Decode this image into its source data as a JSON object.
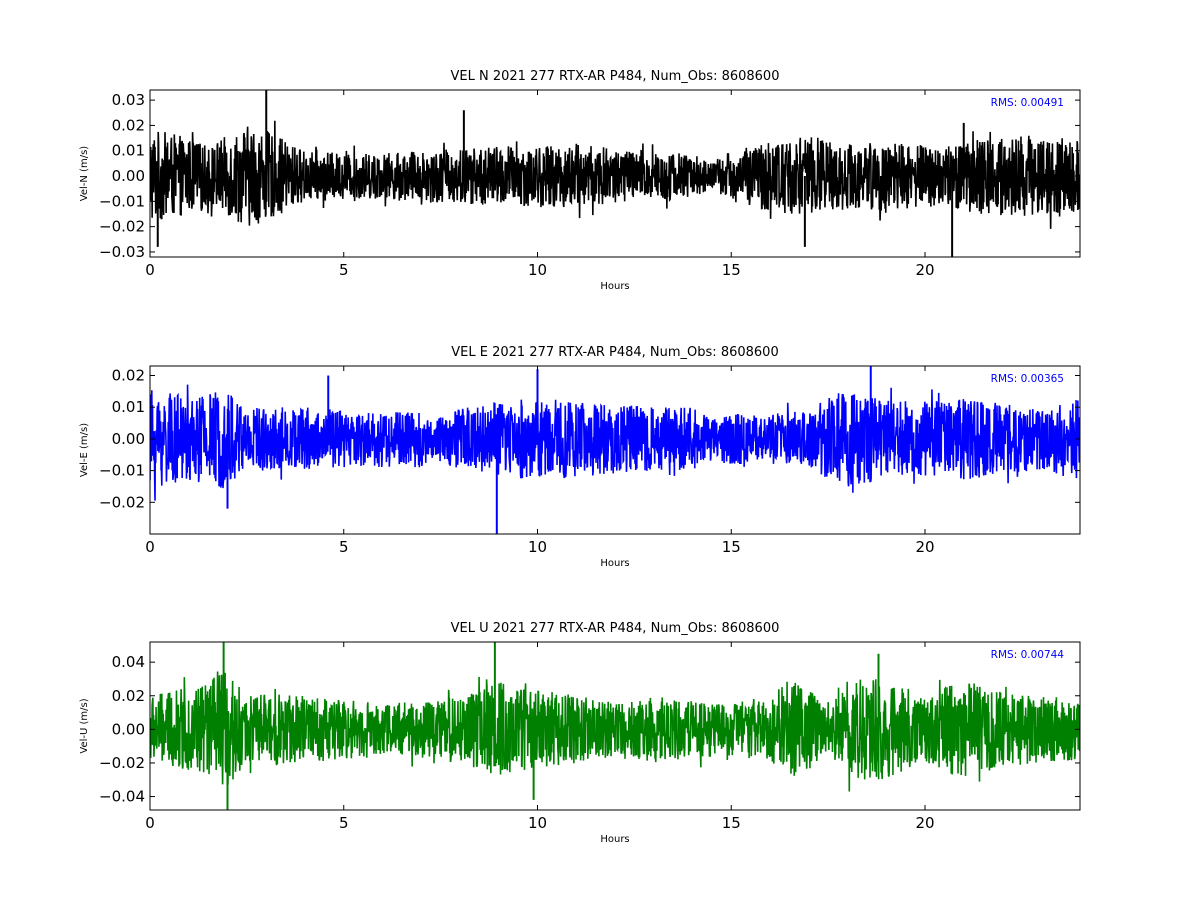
{
  "chart_data": [
    {
      "type": "line",
      "title": "VEL N 2021 277 RTX-AR  P484, Num_Obs: 8608600",
      "xlabel": "Hours",
      "ylabel": "Vel-N (m/s)",
      "xlim": [
        0,
        24
      ],
      "ylim": [
        -0.032,
        0.034
      ],
      "xticks": [
        "0",
        "5",
        "10",
        "15",
        "20"
      ],
      "yticks": [
        "−0.03",
        "−0.02",
        "−0.01",
        "0.00",
        "0.01",
        "0.02",
        "0.03"
      ],
      "ytick_values": [
        -0.03,
        -0.02,
        -0.01,
        0.0,
        0.01,
        0.02,
        0.03
      ],
      "rms_label": "RMS:  0.00491",
      "color": "#000000",
      "envelope": {
        "x": [
          0,
          1,
          1.5,
          2.5,
          3,
          4,
          5,
          6,
          7,
          8,
          9,
          10,
          11,
          12,
          13,
          14,
          14.5,
          15,
          16,
          17,
          18,
          19,
          20,
          21,
          22,
          23,
          24
        ],
        "amp": [
          0.019,
          0.015,
          0.012,
          0.02,
          0.018,
          0.01,
          0.009,
          0.009,
          0.01,
          0.011,
          0.012,
          0.012,
          0.013,
          0.011,
          0.01,
          0.009,
          0.005,
          0.01,
          0.014,
          0.016,
          0.013,
          0.014,
          0.012,
          0.014,
          0.016,
          0.016,
          0.014
        ]
      },
      "spikes": [
        {
          "x": 3.0,
          "y": 0.034
        },
        {
          "x": 0.2,
          "y": -0.028
        },
        {
          "x": 20.7,
          "y": -0.033
        },
        {
          "x": 8.1,
          "y": 0.026
        },
        {
          "x": 16.9,
          "y": -0.028
        },
        {
          "x": 21.0,
          "y": 0.021
        }
      ]
    },
    {
      "type": "line",
      "title": "VEL E 2021 277 RTX-AR  P484, Num_Obs: 8608600",
      "xlabel": "Hours",
      "ylabel": "Vel-E (m/s)",
      "xlim": [
        0,
        24
      ],
      "ylim": [
        -0.03,
        0.023
      ],
      "xticks": [
        "0",
        "5",
        "10",
        "15",
        "20"
      ],
      "yticks": [
        "−0.02",
        "−0.01",
        "0.00",
        "0.01",
        "0.02"
      ],
      "ytick_values": [
        -0.02,
        -0.01,
        0.0,
        0.01,
        0.02
      ],
      "rms_label": "RMS:  0.00365",
      "color": "#0000ff",
      "envelope": {
        "x": [
          0,
          1,
          2,
          2.5,
          3,
          4,
          5,
          6,
          7,
          7.3,
          8,
          9,
          10,
          11,
          12,
          13,
          14,
          14.5,
          15,
          16,
          17,
          17.5,
          18,
          19,
          20,
          21,
          22,
          23,
          24
        ],
        "amp": [
          0.016,
          0.013,
          0.016,
          0.011,
          0.01,
          0.01,
          0.009,
          0.009,
          0.009,
          0.006,
          0.01,
          0.012,
          0.013,
          0.012,
          0.011,
          0.01,
          0.01,
          0.007,
          0.008,
          0.008,
          0.009,
          0.013,
          0.016,
          0.012,
          0.012,
          0.013,
          0.011,
          0.01,
          0.013
        ]
      },
      "spikes": [
        {
          "x": 8.95,
          "y": -0.03
        },
        {
          "x": 10.0,
          "y": 0.022
        },
        {
          "x": 18.6,
          "y": 0.023
        },
        {
          "x": 4.6,
          "y": 0.02
        },
        {
          "x": 2.0,
          "y": -0.022
        }
      ]
    },
    {
      "type": "line",
      "title": "VEL U 2021 277 RTX-AR  P484, Num_Obs: 8608600",
      "xlabel": "Hours",
      "ylabel": "Vel-U (m/s)",
      "xlim": [
        0,
        24
      ],
      "ylim": [
        -0.048,
        0.052
      ],
      "xticks": [
        "0",
        "5",
        "10",
        "15",
        "20"
      ],
      "yticks": [
        "−0.04",
        "−0.02",
        "0.00",
        "0.02",
        "0.04"
      ],
      "ytick_values": [
        -0.04,
        -0.02,
        0.0,
        0.02,
        0.04
      ],
      "rms_label": "RMS:  0.00744",
      "color": "#008000",
      "envelope": {
        "x": [
          0,
          1,
          2,
          2.5,
          3,
          4,
          5,
          6,
          7,
          8,
          9,
          10,
          11,
          12,
          13,
          14,
          15,
          16,
          16.5,
          17,
          17.5,
          18,
          19,
          20,
          21,
          22,
          23,
          24
        ],
        "amp": [
          0.02,
          0.025,
          0.035,
          0.02,
          0.022,
          0.02,
          0.018,
          0.015,
          0.017,
          0.02,
          0.028,
          0.024,
          0.02,
          0.016,
          0.02,
          0.017,
          0.016,
          0.02,
          0.03,
          0.024,
          0.012,
          0.03,
          0.03,
          0.02,
          0.03,
          0.022,
          0.02,
          0.018
        ]
      },
      "spikes": [
        {
          "x": 1.9,
          "y": 0.052
        },
        {
          "x": 8.9,
          "y": 0.052
        },
        {
          "x": 2.0,
          "y": -0.048
        },
        {
          "x": 9.9,
          "y": -0.042
        },
        {
          "x": 18.8,
          "y": 0.045
        }
      ]
    }
  ]
}
